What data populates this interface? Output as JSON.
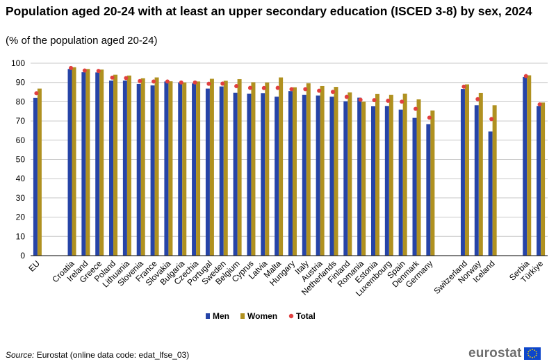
{
  "title": "Population aged 20-24 with at least an upper secondary education (ISCED 3-8) by sex, 2024",
  "subtitle": "(% of the population aged 20-24)",
  "source_label": "Source:",
  "source_text": "Eurostat (online data code: edat_lfse_03)",
  "logo_text": "eurostat",
  "colors": {
    "men": "#2644a7",
    "women": "#b09120",
    "total": "#e04040",
    "grid": "#c8c8c8",
    "axis": "#000000"
  },
  "chart_data": {
    "type": "bar",
    "title": "Population aged 20-24 with at least an upper secondary education (ISCED 3-8) by sex, 2024",
    "subtitle": "(% of the population aged 20-24)",
    "ylim": [
      0,
      100
    ],
    "yticks": [
      0,
      10,
      20,
      30,
      40,
      50,
      60,
      70,
      80,
      90,
      100
    ],
    "grid": true,
    "legend_position": "bottom",
    "categories": [
      "EU",
      "Croatia",
      "Ireland",
      "Greece",
      "Poland",
      "Lithuania",
      "Slovenia",
      "France",
      "Slovakia",
      "Bulgaria",
      "Czechia",
      "Portugal",
      "Sweden",
      "Belgium",
      "Cyprus",
      "Latvia",
      "Malta",
      "Hungary",
      "Italy",
      "Austria",
      "Netherlands",
      "Finland",
      "Romania",
      "Estonia",
      "Luxembourg",
      "Spain",
      "Denmark",
      "Germany",
      "Switzerland",
      "Norway",
      "Iceland",
      "Serbia",
      "Türkiye"
    ],
    "groups": [
      [
        0
      ],
      [
        1,
        2,
        3,
        4,
        5,
        6,
        7,
        8,
        9,
        10,
        11,
        12,
        13,
        14,
        15,
        16,
        17,
        18,
        19,
        20,
        21,
        22,
        23,
        24,
        25,
        26,
        27
      ],
      [
        28,
        29,
        30
      ],
      [
        31,
        32
      ]
    ],
    "series": [
      {
        "name": "Men",
        "kind": "bar",
        "values": [
          82.0,
          97.0,
          95.3,
          95.2,
          91.0,
          91.0,
          89.2,
          88.5,
          90.5,
          90.0,
          89.5,
          86.8,
          87.9,
          84.6,
          84.2,
          84.4,
          82.6,
          85.5,
          83.5,
          83.2,
          82.6,
          80.2,
          82.1,
          77.6,
          77.7,
          75.9,
          71.6,
          68.3,
          86.6,
          78.2,
          64.5,
          92.8,
          77.7
        ]
      },
      {
        "name": "Women",
        "kind": "bar",
        "values": [
          86.8,
          97.9,
          97.0,
          96.7,
          94.0,
          93.6,
          92.2,
          92.6,
          90.6,
          90.0,
          90.5,
          91.9,
          90.9,
          91.7,
          90.1,
          90.0,
          92.6,
          87.5,
          89.6,
          88.1,
          87.7,
          84.8,
          80.0,
          84.1,
          83.5,
          84.2,
          81.2,
          75.4,
          89.0,
          84.5,
          78.2,
          93.7,
          79.6
        ]
      },
      {
        "name": "Total",
        "kind": "dot",
        "values": [
          84.4,
          97.5,
          96.2,
          96.0,
          92.5,
          92.3,
          90.7,
          90.5,
          90.5,
          90.0,
          90.0,
          89.3,
          89.4,
          88.1,
          87.2,
          87.1,
          87.2,
          86.5,
          86.5,
          85.7,
          85.1,
          82.5,
          81.0,
          80.8,
          80.5,
          80.0,
          76.3,
          71.7,
          87.8,
          81.3,
          71.0,
          93.3,
          78.6
        ]
      }
    ]
  }
}
